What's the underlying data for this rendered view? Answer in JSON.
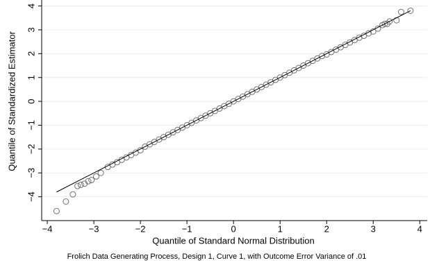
{
  "chart_data": {
    "type": "scatter",
    "x_label": "Quantile of Standard Normal Distribution",
    "y_label": "Quantile of Standardized Estimator",
    "caption": "Frolich Data Generating Process, Design 1, Curve 1, with Outcome Error Variance of .01",
    "xlim": [
      -4.12,
      4.16
    ],
    "ylim": [
      -5,
      4.25
    ],
    "xticks": [
      {
        "value": -4,
        "label": "−4"
      },
      {
        "value": -3,
        "label": "−3"
      },
      {
        "value": -2,
        "label": "−2"
      },
      {
        "value": -1,
        "label": "−1"
      },
      0,
      1,
      2,
      3,
      4
    ],
    "yticks": [
      {
        "value": -4,
        "label": "−4"
      },
      {
        "value": -3,
        "label": "−3"
      },
      {
        "value": -2,
        "label": "−2"
      },
      {
        "value": -1,
        "label": "−1"
      },
      0,
      1,
      2,
      3,
      4
    ],
    "grid": true,
    "color": "#6e6e6e",
    "line_color": "#000000",
    "fit_line": {
      "x": [
        -3.8,
        3.8
      ],
      "y": [
        -3.8,
        3.8
      ]
    },
    "x": [
      -3.8,
      -3.6,
      -3.45,
      -3.35,
      -3.28,
      -3.2,
      -3.12,
      -3.05,
      -2.95,
      -2.85,
      -2.7,
      -2.6,
      -2.5,
      -2.4,
      -2.3,
      -2.2,
      -2.1,
      -2.0,
      -1.9,
      -1.8,
      -1.7,
      -1.6,
      -1.5,
      -1.4,
      -1.3,
      -1.2,
      -1.1,
      -1.0,
      -0.9,
      -0.8,
      -0.7,
      -0.6,
      -0.5,
      -0.4,
      -0.3,
      -0.2,
      -0.1,
      0,
      0.1,
      0.2,
      0.3,
      0.4,
      0.5,
      0.6,
      0.7,
      0.8,
      0.9,
      1.0,
      1.1,
      1.2,
      1.3,
      1.4,
      1.5,
      1.6,
      1.7,
      1.8,
      1.9,
      2.0,
      2.1,
      2.2,
      2.3,
      2.4,
      2.5,
      2.6,
      2.7,
      2.8,
      2.9,
      3.0,
      3.1,
      3.2,
      3.25,
      3.3,
      3.35,
      3.5,
      3.6,
      3.8
    ],
    "values": [
      -4.6,
      -4.2,
      -3.9,
      -3.55,
      -3.5,
      -3.45,
      -3.35,
      -3.3,
      -3.15,
      -3.0,
      -2.75,
      -2.65,
      -2.55,
      -2.45,
      -2.35,
      -2.25,
      -2.15,
      -2.05,
      -1.9,
      -1.8,
      -1.7,
      -1.6,
      -1.5,
      -1.4,
      -1.3,
      -1.2,
      -1.1,
      -1.0,
      -0.9,
      -0.8,
      -0.7,
      -0.6,
      -0.5,
      -0.4,
      -0.3,
      -0.2,
      -0.1,
      0,
      0.1,
      0.2,
      0.3,
      0.4,
      0.5,
      0.6,
      0.7,
      0.8,
      0.9,
      1.0,
      1.1,
      1.2,
      1.3,
      1.4,
      1.5,
      1.6,
      1.7,
      1.8,
      1.9,
      1.97,
      2.07,
      2.17,
      2.27,
      2.37,
      2.47,
      2.57,
      2.67,
      2.75,
      2.85,
      2.93,
      3.05,
      3.2,
      3.25,
      3.25,
      3.35,
      3.4,
      3.75,
      3.8
    ]
  }
}
